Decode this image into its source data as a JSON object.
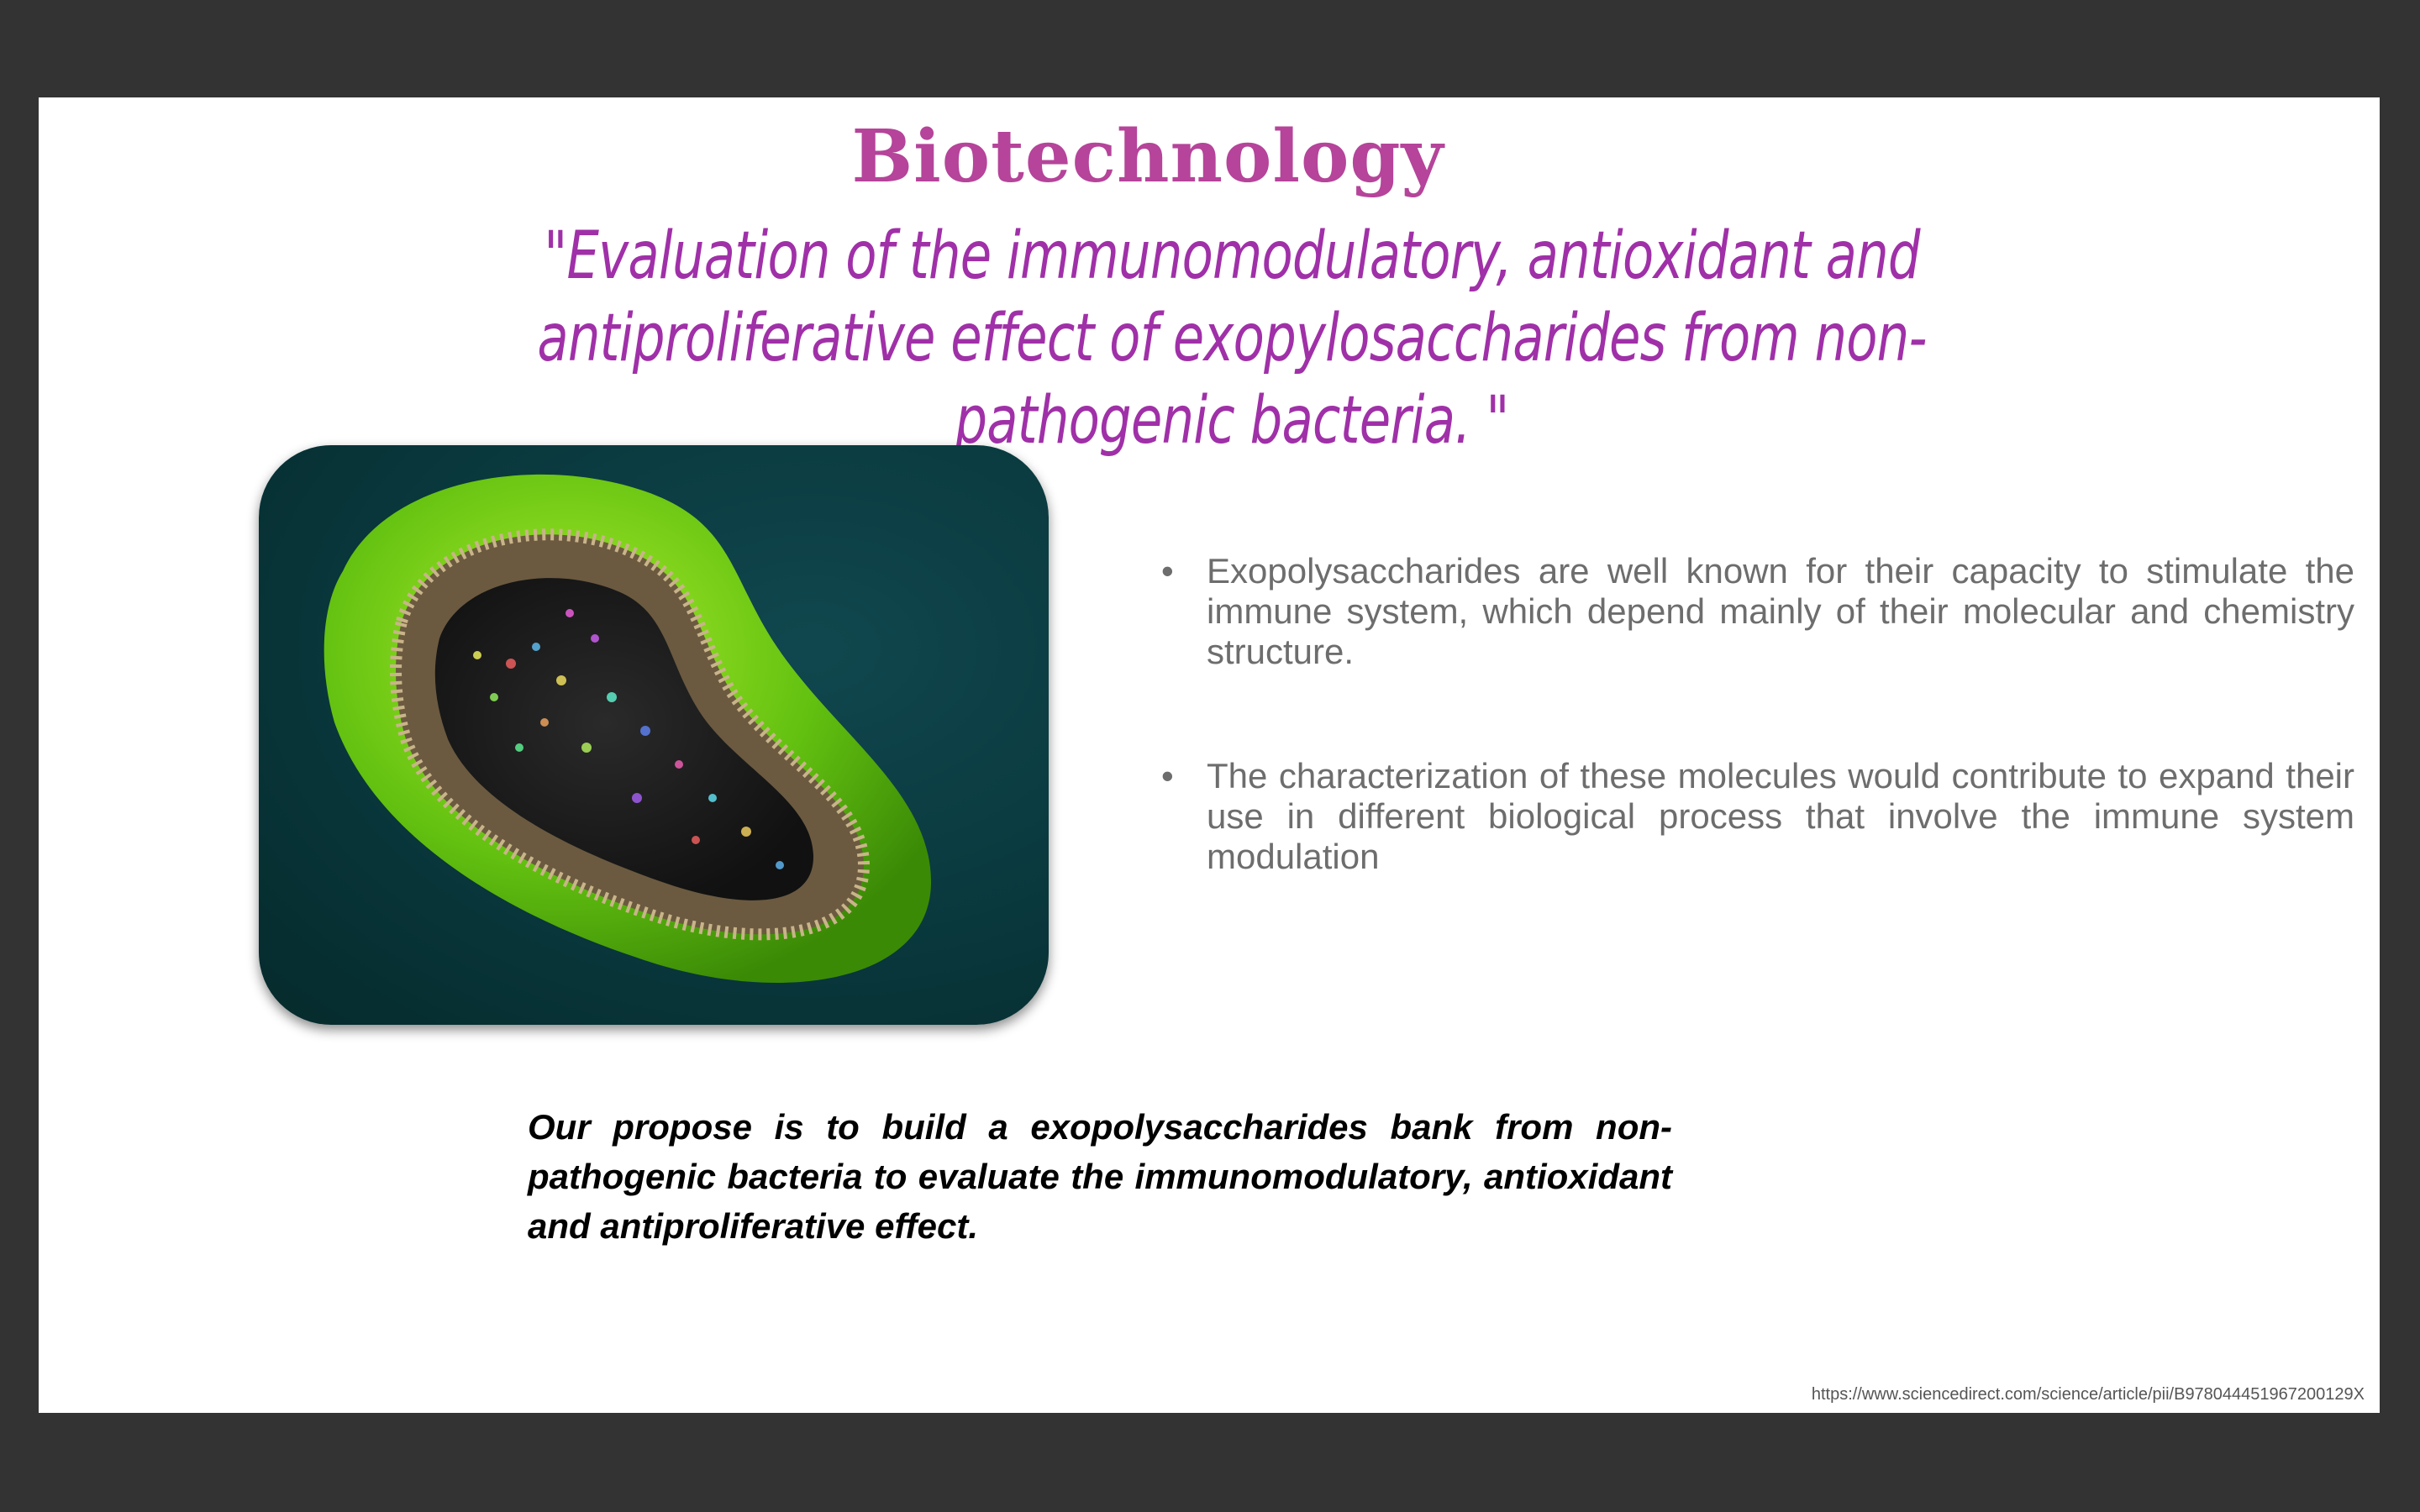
{
  "slide": {
    "heading": "Biotechnology",
    "subtitle": "\"Evaluation of the immunomodulatory, antioxidant and antiproliferative effect of exopylosaccharides from non-pathogenic bacteria. \"",
    "bullet_marker": "•",
    "bullets": [
      "Exopolysaccharides are well known for their capacity to stimulate the immune system, which depend mainly of their molecular and chemistry structure.",
      "The characterization of these molecules would contribute to expand their use in different biological process that involve the immune system modulation"
    ],
    "purpose": "Our propose is to build a exopolysaccharides bank from non-pathogenic bacteria to evaluate the immunomodulatory, antioxidant and antiproliferative effect.",
    "source_url": "https://www.sciencedirect.com/science/article/pii/B978044451967200129X"
  },
  "colors": {
    "background": "#333333",
    "heading": "#b5449a",
    "subtitle": "#a030a8",
    "body_text": "#6d6d6d"
  },
  "image": {
    "depicts": "bacterium-cross-section"
  }
}
